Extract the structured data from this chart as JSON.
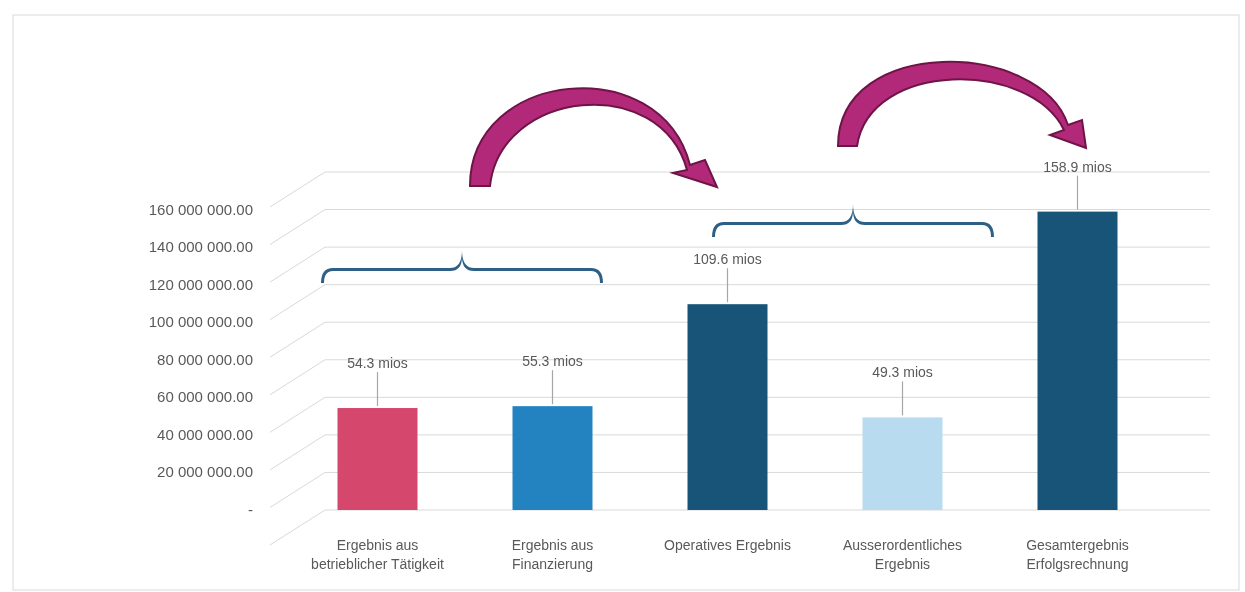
{
  "chart_data": {
    "type": "bar",
    "categories": [
      "Ergebnis aus betrieblicher Tätigkeit",
      "Ergebnis aus Finanzierung",
      "Operatives Ergebnis",
      "Ausserordentliches Ergebnis",
      "Gesamtergebnis Erfolgsrechnung"
    ],
    "values": [
      54300000,
      55300000,
      109600000,
      49300000,
      158900000
    ],
    "colors": [
      "#d6476e",
      "#2383c0",
      "#175478",
      "#b8dbf0",
      "#175478"
    ],
    "annotations": [
      {
        "text": "54.3 mios",
        "x": "Ergebnis aus betrieblicher Tätigkeit",
        "y": 54300000
      },
      {
        "text": "55.3 mios",
        "x": "Ergebnis aus Finanzierung",
        "y": 55300000
      },
      {
        "text": "109.6 mios",
        "x": "Operatives Ergebnis",
        "y": 109600000
      },
      {
        "text": "49.3 mios",
        "x": "Ausserordentliches Ergebnis",
        "y": 49300000
      },
      {
        "text": "158.9 mios",
        "x": "Gesamtergebnis Erfolgsrechnung",
        "y": 158900000
      }
    ],
    "ylim": [
      0,
      180000000
    ],
    "yticks": [
      {
        "value": 0,
        "label": "-"
      },
      {
        "value": 20000000,
        "label": "20 000 000.00"
      },
      {
        "value": 40000000,
        "label": "40 000 000.00"
      },
      {
        "value": 60000000,
        "label": "60 000 000.00"
      },
      {
        "value": 80000000,
        "label": "80 000 000.00"
      },
      {
        "value": 100000000,
        "label": "100 000 000.00"
      },
      {
        "value": 120000000,
        "label": "120 000 000.00"
      },
      {
        "value": 140000000,
        "label": "140 000 000.00"
      },
      {
        "value": 160000000,
        "label": "160 000 000.00"
      },
      {
        "value": 180000000,
        "label": null
      }
    ],
    "grid": "y"
  }
}
